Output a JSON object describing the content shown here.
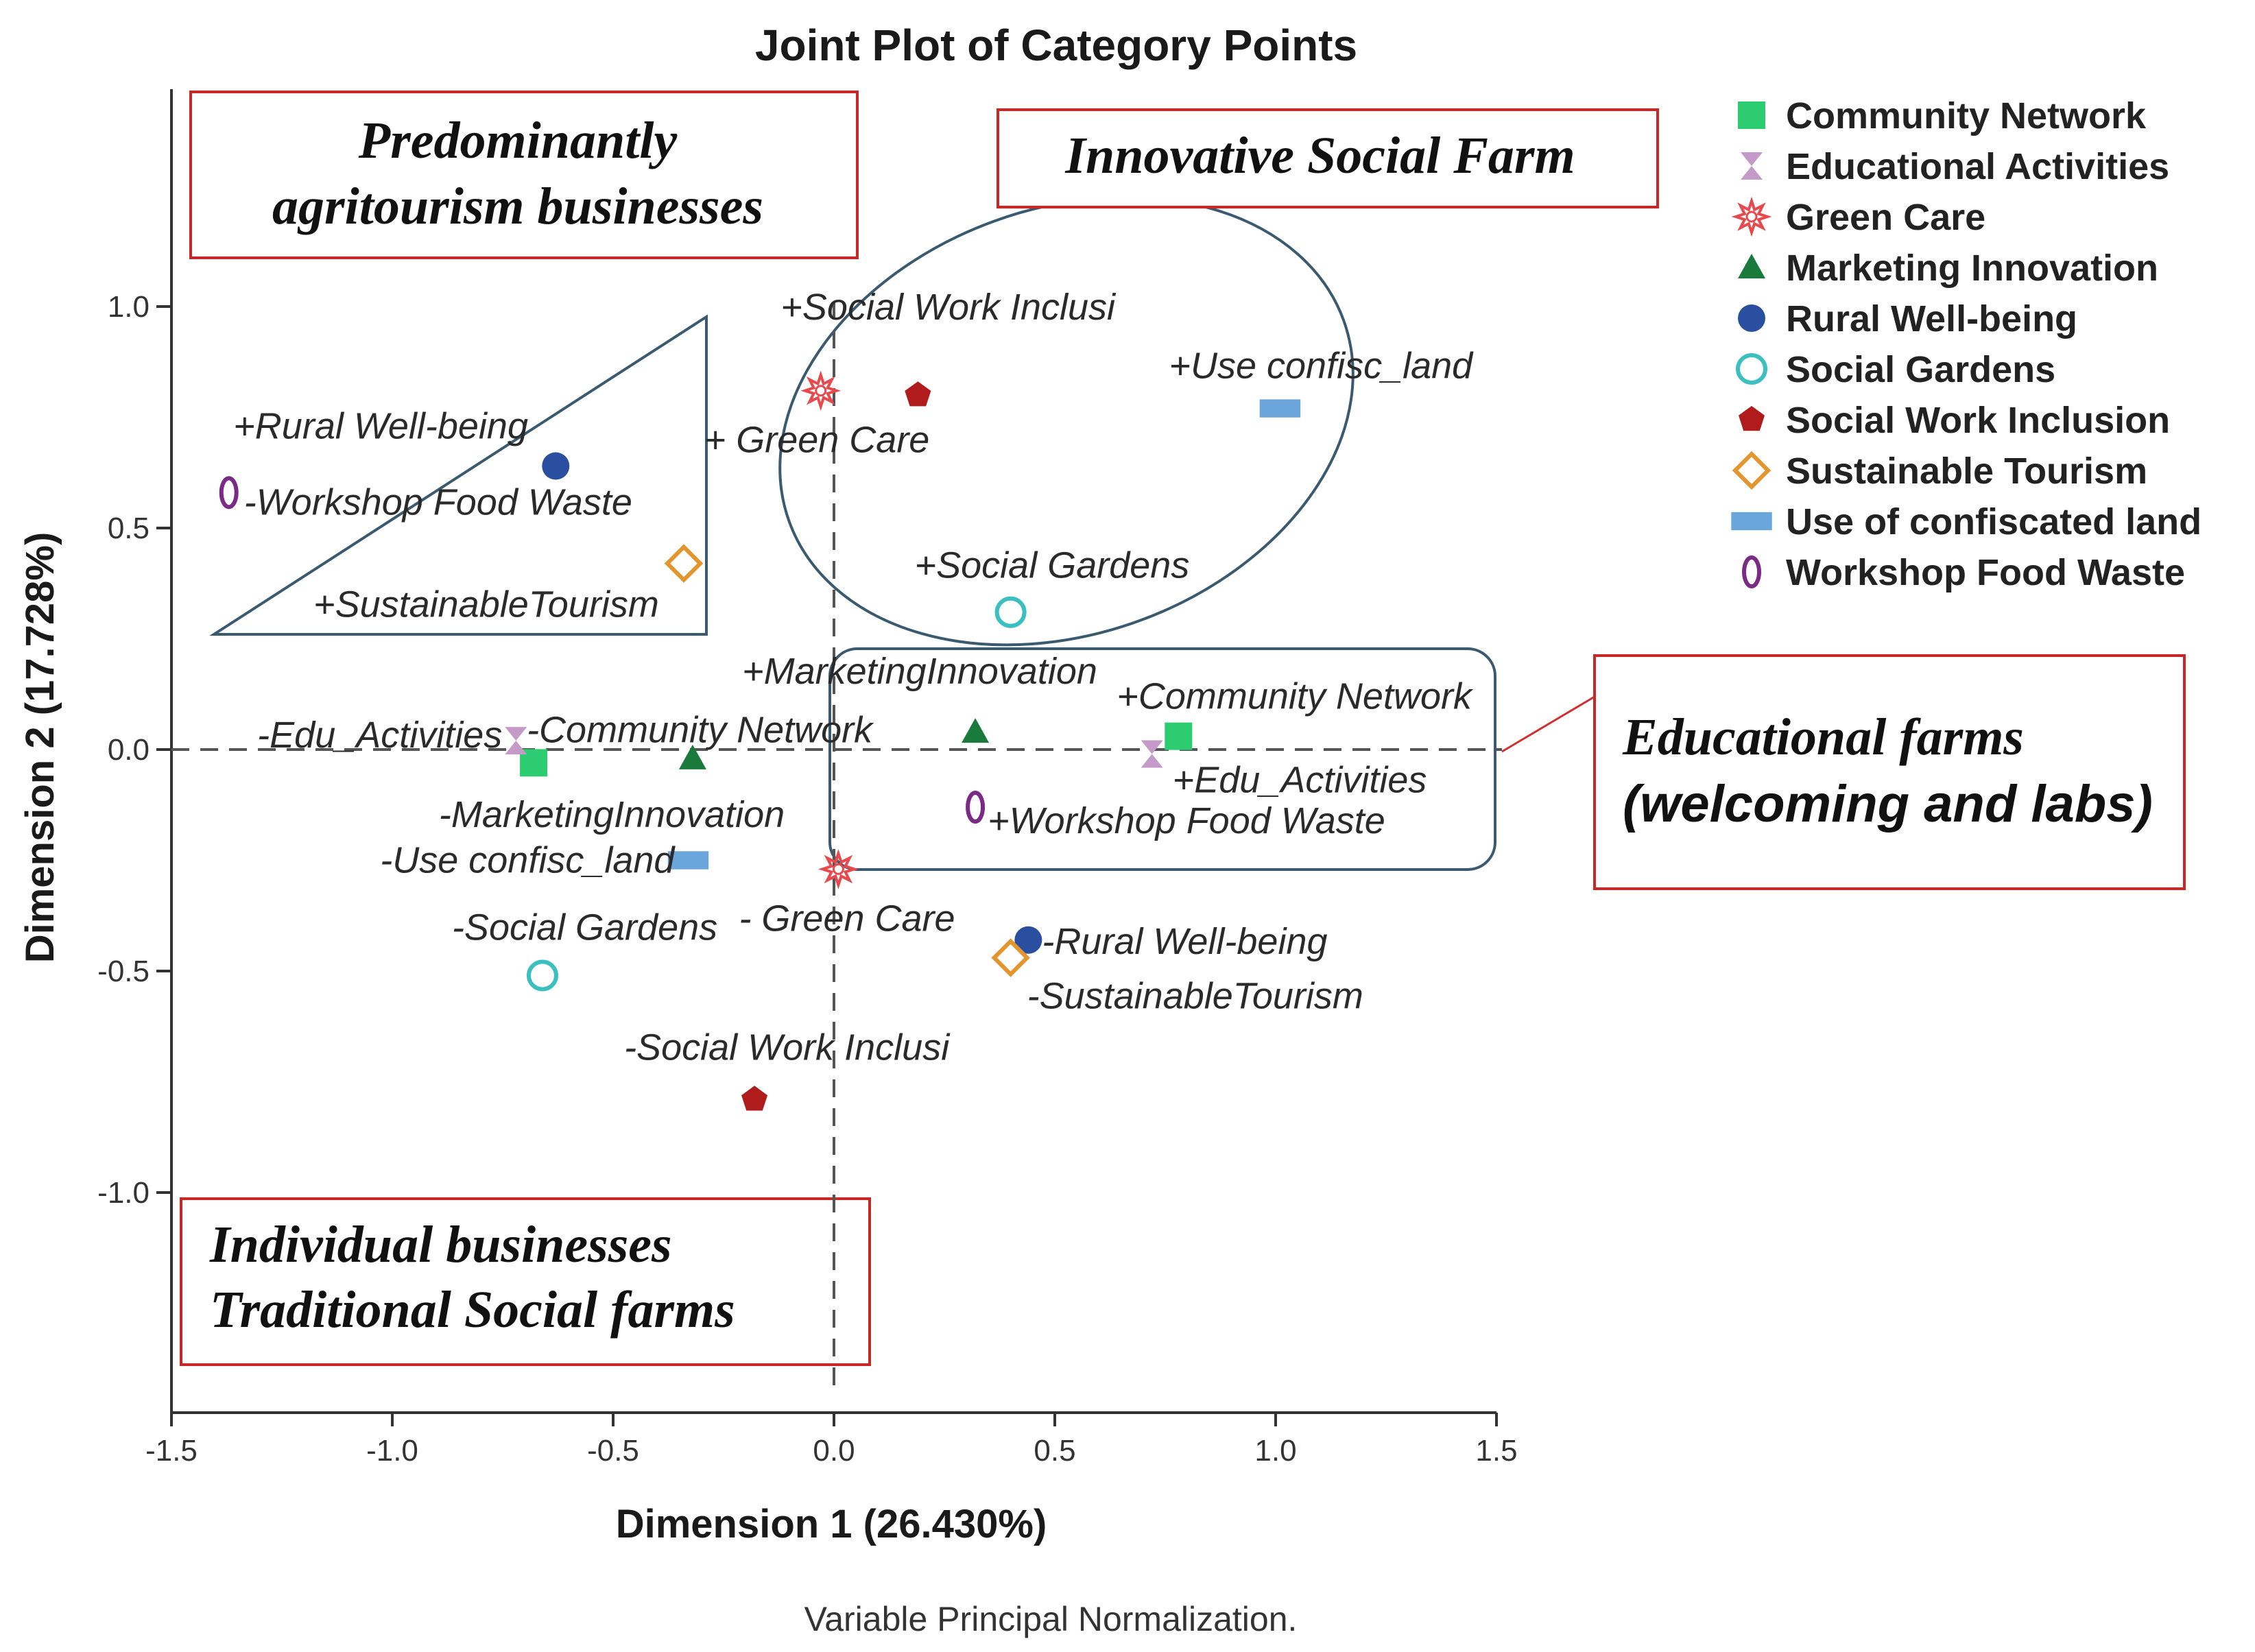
{
  "chart_data": {
    "type": "scatter",
    "title": "Joint Plot of Category Points",
    "xlabel": "Dimension 1 (26.430%)",
    "ylabel": "Dimension 2 (17.728%)",
    "note": "Variable Principal Normalization.",
    "xlim": [
      -1.5,
      1.5
    ],
    "ylim": [
      -1.5,
      1.5
    ],
    "xticks": [
      "-1.5",
      "-1.0",
      "-0.5",
      "0.0",
      "0.5",
      "1.0",
      "1.5"
    ],
    "yticks": [
      "1.0",
      "0.5",
      "0.0",
      "-0.5",
      "-1.0"
    ],
    "legend_position": "right",
    "series": [
      {
        "name": "Community Network",
        "marker": "square",
        "color": "#2ecc71",
        "points": [
          {
            "x": 0.78,
            "y": 0.03,
            "label": "+Community Network"
          },
          {
            "x": -0.68,
            "y": -0.03,
            "label": "-Community Network"
          }
        ]
      },
      {
        "name": "Educational Activities",
        "marker": "hourglass",
        "color": "#c49ac8",
        "points": [
          {
            "x": 0.72,
            "y": -0.01,
            "label": "+Edu_Activities"
          },
          {
            "x": -0.72,
            "y": 0.02,
            "label": "-Edu_Activities"
          }
        ]
      },
      {
        "name": "Green Care",
        "marker": "star",
        "color": "#e8494c",
        "points": [
          {
            "x": -0.03,
            "y": 0.81,
            "label": "+ Green Care"
          },
          {
            "x": 0.01,
            "y": -0.27,
            "label": "- Green Care"
          }
        ]
      },
      {
        "name": "Marketing Innovation",
        "marker": "triangle",
        "color": "#1a7a3c",
        "points": [
          {
            "x": 0.32,
            "y": 0.04,
            "label": "+MarketingInnovation"
          },
          {
            "x": -0.32,
            "y": -0.02,
            "label": "-MarketingInnovation"
          }
        ]
      },
      {
        "name": "Rural Well-being",
        "marker": "circle",
        "color": "#2b4fa0",
        "points": [
          {
            "x": -0.63,
            "y": 0.64,
            "label": "+Rural Well-being"
          },
          {
            "x": 0.44,
            "y": -0.43,
            "label": "-Rural Well-being"
          }
        ]
      },
      {
        "name": "Social Gardens",
        "marker": "circle-open",
        "color": "#3bbfc0",
        "points": [
          {
            "x": 0.4,
            "y": 0.31,
            "label": "+Social Gardens"
          },
          {
            "x": -0.66,
            "y": -0.51,
            "label": "-Social Gardens"
          }
        ]
      },
      {
        "name": "Social Work Inclusion",
        "marker": "pentagon",
        "color": "#b01c1c",
        "points": [
          {
            "x": 0.19,
            "y": 0.8,
            "label": "+Social Work Inclusi"
          },
          {
            "x": -0.18,
            "y": -0.79,
            "label": "-Social Work Inclusi"
          }
        ]
      },
      {
        "name": "Sustainable Tourism",
        "marker": "diamond-open",
        "color": "#e3962d",
        "points": [
          {
            "x": -0.34,
            "y": 0.42,
            "label": "+SustainableTourism"
          },
          {
            "x": 0.4,
            "y": -0.47,
            "label": "-SustainableTourism"
          }
        ]
      },
      {
        "name": "Use of confiscated land",
        "marker": "rect",
        "color": "#6aa6dc",
        "points": [
          {
            "x": 1.01,
            "y": 0.77,
            "label": "+Use confisc_land"
          },
          {
            "x": -0.33,
            "y": -0.25,
            "label": "-Use confisc_land"
          }
        ]
      },
      {
        "name": "Workshop Food Waste",
        "marker": "zero",
        "color": "#7b2a85",
        "points": [
          {
            "x": -1.37,
            "y": 0.58,
            "label": "-Workshop Food Waste"
          },
          {
            "x": 0.32,
            "y": -0.13,
            "label": "+Workshop Food Waste"
          }
        ]
      }
    ],
    "annotations": [
      {
        "id": "agritourism",
        "lines": [
          "Predominantly",
          "agritourism businesses"
        ]
      },
      {
        "id": "innovative",
        "lines": [
          "Innovative  Social Farm"
        ]
      },
      {
        "id": "educational",
        "lines": [
          "Educational  farms",
          "(welcoming and labs)"
        ]
      },
      {
        "id": "individual",
        "lines": [
          "Individual  businesses",
          "Traditional Social farms"
        ]
      }
    ]
  }
}
